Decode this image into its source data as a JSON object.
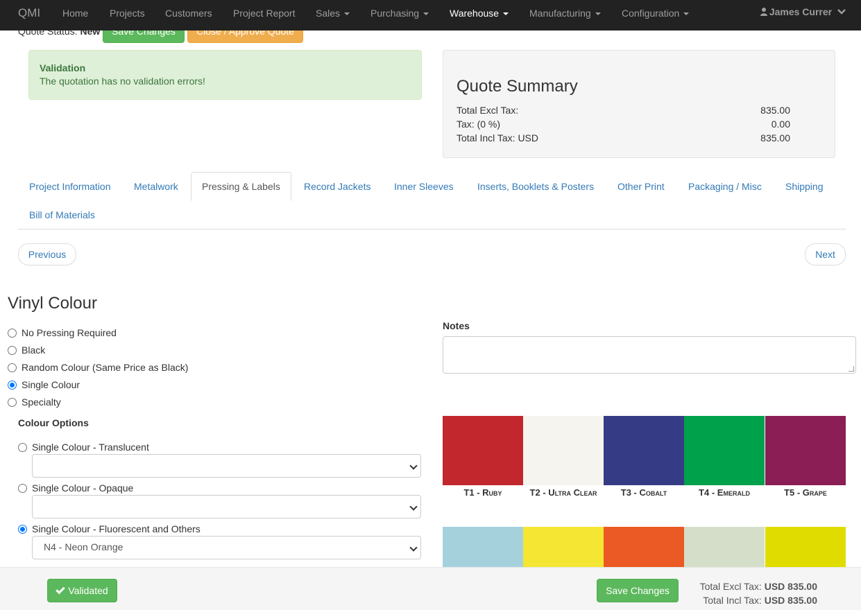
{
  "navbar": {
    "brand": "QMI",
    "items": [
      {
        "label": "Home",
        "dropdown": false,
        "active": false
      },
      {
        "label": "Projects",
        "dropdown": false,
        "active": false
      },
      {
        "label": "Customers",
        "dropdown": false,
        "active": false
      },
      {
        "label": "Project Report",
        "dropdown": false,
        "active": false
      },
      {
        "label": "Sales",
        "dropdown": true,
        "active": false
      },
      {
        "label": "Purchasing",
        "dropdown": true,
        "active": false
      },
      {
        "label": "Warehouse",
        "dropdown": true,
        "active": true
      },
      {
        "label": "Manufacturing",
        "dropdown": true,
        "active": false
      },
      {
        "label": "Configuration",
        "dropdown": true,
        "active": false
      }
    ],
    "user": "James Currer"
  },
  "header": {
    "quote_status_label": "Quote Status:",
    "quote_status_value": "New",
    "save_label": "Save Changes",
    "close_label": "Close / Approve Quote"
  },
  "validation": {
    "title": "Validation",
    "message": "The quotation has no validation errors!"
  },
  "summary": {
    "title": "Quote Summary",
    "rows": [
      {
        "label": "Total Excl Tax:",
        "value": "835.00"
      },
      {
        "label": "Tax: (0 %)",
        "value": "0.00"
      },
      {
        "label": "Total Incl Tax: USD",
        "value": "835.00"
      }
    ]
  },
  "tabs": [
    {
      "label": "Project Information",
      "active": false
    },
    {
      "label": "Metalwork",
      "active": false
    },
    {
      "label": "Pressing & Labels",
      "active": true
    },
    {
      "label": "Record Jackets",
      "active": false
    },
    {
      "label": "Inner Sleeves",
      "active": false
    },
    {
      "label": "Inserts, Booklets & Posters",
      "active": false
    },
    {
      "label": "Other Print",
      "active": false
    },
    {
      "label": "Packaging / Misc",
      "active": false
    },
    {
      "label": "Shipping",
      "active": false
    },
    {
      "label": "Bill of Materials",
      "active": false
    }
  ],
  "pager": {
    "previous": "Previous",
    "next": "Next"
  },
  "vinyl": {
    "title": "Vinyl Colour",
    "options": [
      {
        "label": "No Pressing Required",
        "checked": false
      },
      {
        "label": "Black",
        "checked": false
      },
      {
        "label": "Random Colour (Same Price as Black)",
        "checked": false
      },
      {
        "label": "Single Colour",
        "checked": true
      },
      {
        "label": "Specialty",
        "checked": false
      }
    ],
    "colour_options_title": "Colour Options",
    "colour_options": [
      {
        "label": "Single Colour - Translucent",
        "checked": false,
        "selected": ""
      },
      {
        "label": "Single Colour - Opaque",
        "checked": false,
        "selected": ""
      },
      {
        "label": "Single Colour - Fluorescent and Others",
        "checked": true,
        "selected": "N4 - Neon Orange"
      }
    ]
  },
  "notes": {
    "label": "Notes",
    "value": ""
  },
  "swatches": [
    {
      "label": "T1 - Ruby",
      "color": "#c1272d"
    },
    {
      "label": "T2 - Ultra Clear",
      "color": "#f6f4ef"
    },
    {
      "label": "T3 - Cobalt",
      "color": "#353b85"
    },
    {
      "label": "T4 - Emerald",
      "color": "#00a14b"
    },
    {
      "label": "T5 - Grape",
      "color": "#8a1e55"
    },
    {
      "label": "",
      "color": "#a5d1dd"
    },
    {
      "label": "",
      "color": "#f5e634"
    },
    {
      "label": "",
      "color": "#eb5a24"
    },
    {
      "label": "",
      "color": "#d4dec9"
    },
    {
      "label": "",
      "color": "#e1dc00"
    }
  ],
  "footer": {
    "validated_label": "Validated",
    "save_label": "Save Changes",
    "total_excl_label": "Total Excl Tax:",
    "total_excl_value": "USD 835.00",
    "total_incl_label": "Total Incl Tax:",
    "total_incl_value": "USD 835.00"
  }
}
